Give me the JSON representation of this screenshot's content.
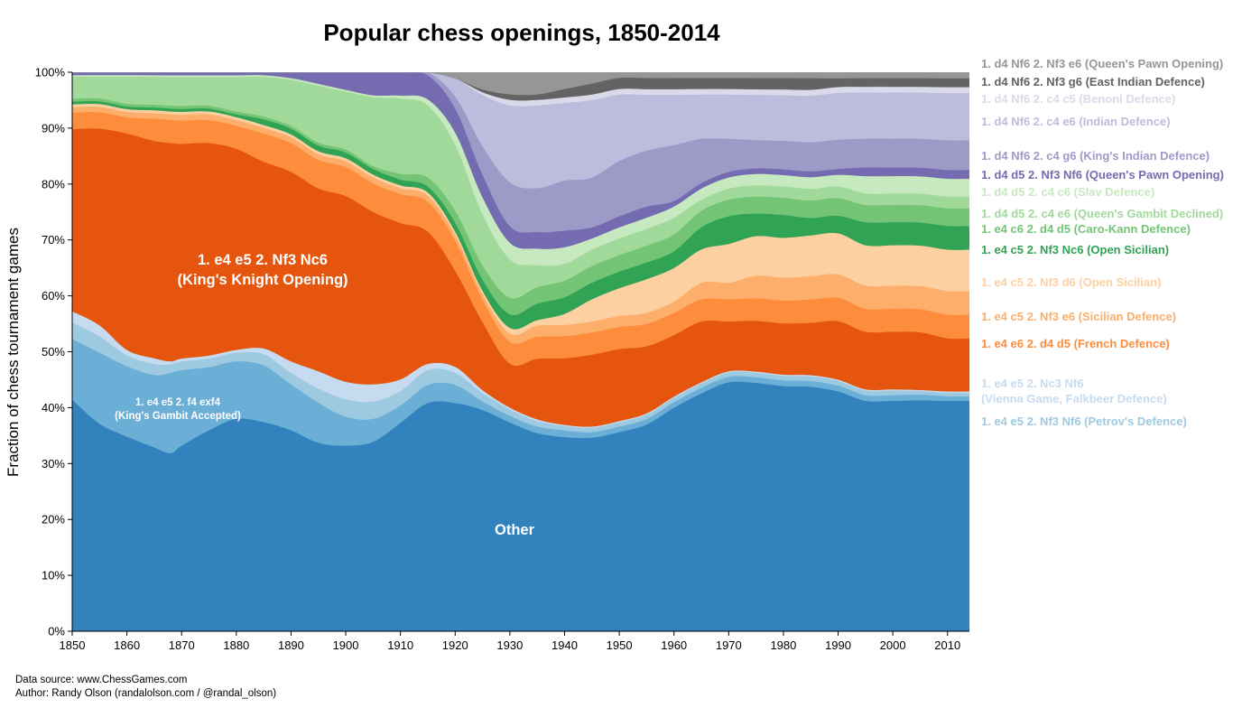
{
  "title": "Popular chess openings, 1850-2014",
  "footer": {
    "source": "Data source: www.ChessGames.com",
    "author": "Author: Randy Olson (randalolson.com / @randal_olson)"
  },
  "chart_data": {
    "type": "area",
    "stacked": true,
    "title": "Popular chess openings, 1850-2014",
    "xlabel": "",
    "ylabel": "Fraction of chess tournament games",
    "xlim": [
      1850,
      2014
    ],
    "ylim": [
      0,
      100
    ],
    "x_ticks": [
      1850,
      1860,
      1870,
      1880,
      1890,
      1900,
      1910,
      1920,
      1930,
      1940,
      1950,
      1960,
      1970,
      1980,
      1990,
      2000,
      2010
    ],
    "y_ticks": [
      0,
      10,
      20,
      30,
      40,
      50,
      60,
      70,
      80,
      90,
      100
    ],
    "y_tick_labels": [
      "0%",
      "10%",
      "20%",
      "30%",
      "40%",
      "50%",
      "60%",
      "70%",
      "80%",
      "90%",
      "100%"
    ],
    "grid": false,
    "legend_placement": "right",
    "x": [
      1850,
      1855,
      1860,
      1865,
      1868,
      1870,
      1875,
      1880,
      1885,
      1890,
      1895,
      1900,
      1905,
      1910,
      1915,
      1920,
      1925,
      1930,
      1935,
      1940,
      1945,
      1950,
      1955,
      1960,
      1965,
      1970,
      1975,
      1980,
      1985,
      1990,
      1995,
      2000,
      2005,
      2010,
      2014
    ],
    "series": [
      {
        "name": "Other",
        "color": "#3182bd",
        "values": [
          42,
          38,
          36,
          33,
          31,
          32,
          35,
          37,
          37,
          35,
          33,
          32,
          33,
          36,
          38,
          38,
          39,
          38,
          36,
          35,
          35,
          36,
          37,
          40,
          43,
          45,
          44,
          43,
          42,
          41,
          40,
          40,
          40,
          39,
          39
        ]
      },
      {
        "name": "1. e4 e5 2. Nf3 Nf6 (Petrov's Defence)",
        "color": "#6baed6",
        "values": [
          11,
          13,
          13,
          13,
          14,
          13,
          11,
          10,
          10,
          8,
          7,
          5,
          4,
          3,
          3,
          3,
          1.5,
          1.2,
          1.2,
          1.2,
          1,
          1,
          1,
          1,
          1,
          1,
          1,
          1,
          1,
          1,
          1,
          1,
          1,
          0.8,
          0.8
        ]
      },
      {
        "name": "1. e4 e5 2. Nc3 Nf6 (Vienna Game, Falkbeer Defence)",
        "color": "#9ecae1",
        "values": [
          3,
          3,
          2,
          2,
          1.5,
          1.5,
          1.5,
          1.5,
          2,
          2,
          2.5,
          3,
          3,
          2.5,
          2.5,
          2,
          1.5,
          1.2,
          1,
          0.8,
          0.8,
          0.8,
          0.8,
          0.8,
          0.8,
          0.8,
          0.8,
          0.8,
          0.8,
          0.8,
          0.8,
          0.8,
          0.6,
          0.6,
          0.6
        ]
      },
      {
        "name": "1. e4 e5 2. f4 exf4 (King's Gambit Accepted)",
        "color": "#c6dbef",
        "values": [
          2,
          2,
          1,
          1,
          0.5,
          0.5,
          0.5,
          0.5,
          1,
          2,
          3,
          3,
          3,
          2,
          1,
          1,
          0.5,
          0.3,
          0.3,
          0.2,
          0.2,
          0.2,
          0.2,
          0.2,
          0.2,
          0.2,
          0.2,
          0.2,
          0.2,
          0.2,
          0.2,
          0.2,
          0.2,
          0.2,
          0.2
        ]
      },
      {
        "name": "1. e4 e5 2. Nf3 Nc6 (King's Knight Opening)",
        "color": "#e6550d",
        "values": [
          33,
          36,
          40,
          39,
          38,
          37,
          37,
          35,
          33,
          33,
          32,
          32,
          30,
          27,
          22,
          16,
          12,
          8,
          11,
          12,
          13,
          13,
          12,
          11,
          11,
          9,
          9,
          9,
          9,
          10,
          10,
          10,
          10,
          9,
          9
        ]
      },
      {
        "name": "1. e4 e6 2. d4 d5 (French Defence)",
        "color": "#fd8d3c",
        "values": [
          3,
          3,
          3,
          4,
          4,
          4,
          4,
          4,
          5,
          5,
          5,
          5,
          5,
          5,
          5,
          5,
          4,
          4,
          4,
          4,
          4,
          4,
          4,
          4,
          4,
          4,
          4,
          4,
          4,
          4,
          4,
          4,
          4,
          4,
          4
        ]
      },
      {
        "name": "1. e4 c5 2. Nf3 e6 (Sicilian Defence)",
        "color": "#fdae6b",
        "values": [
          1,
          1,
          1,
          1,
          1,
          1,
          1,
          1,
          1,
          1,
          1,
          1,
          1,
          1,
          1,
          1,
          1,
          1.5,
          2,
          2,
          2,
          2,
          2,
          2,
          3,
          3,
          4,
          4,
          4,
          4,
          4,
          4,
          4,
          4,
          4
        ]
      },
      {
        "name": "1. e4 c5 2. Nf3 d6 (Open Sicilian)",
        "color": "#fdd0a2",
        "values": [
          0.5,
          0.5,
          0.5,
          0.5,
          0.5,
          0.5,
          0.5,
          0.5,
          0.5,
          0.5,
          0.5,
          0.5,
          0.5,
          0.5,
          0.5,
          0.5,
          0.5,
          1,
          1,
          2,
          4,
          5,
          6,
          6,
          6,
          7,
          7,
          7,
          7,
          7,
          7,
          7,
          7,
          7,
          7
        ]
      },
      {
        "name": "1. e4 c5 2. Nf3 Nc6 (Open Sicilian)",
        "color": "#31a354",
        "values": [
          0.5,
          0.5,
          0.5,
          0.5,
          0.5,
          0.5,
          0.5,
          0.5,
          1,
          1,
          1,
          1,
          1,
          1,
          1,
          1.5,
          2,
          2.5,
          3,
          3,
          3,
          3,
          3,
          3,
          4,
          5,
          4,
          4,
          3,
          3,
          4,
          4,
          4,
          4,
          4
        ]
      },
      {
        "name": "1. e4 c6 2. d4 d5 (Caro-Kann Defence)",
        "color": "#74c476",
        "values": [
          0.5,
          0.5,
          0.5,
          0.5,
          0.5,
          0.5,
          0.5,
          0.5,
          0.5,
          0.5,
          0.5,
          0.5,
          0.5,
          1,
          1.5,
          2,
          2.5,
          3,
          3,
          3,
          3,
          3,
          3,
          3,
          3,
          3,
          3,
          3,
          3,
          3,
          3,
          3,
          3,
          3,
          3
        ]
      },
      {
        "name": "1. d4 d5 2. c4 e6 (Queen's Gambit Declined)",
        "color": "#a1d99b",
        "values": [
          4,
          4,
          5,
          5,
          5,
          5,
          5,
          6,
          7,
          8,
          10,
          10,
          12,
          13,
          12,
          11,
          9,
          7,
          4,
          3,
          3,
          3,
          3,
          3,
          2,
          2,
          2,
          2,
          2,
          2,
          2,
          2,
          2,
          2,
          2
        ]
      },
      {
        "name": "1. d4 d5 2. c4 c6 (Slav Defence)",
        "color": "#c7e9c0",
        "values": [
          0.3,
          0.3,
          0.3,
          0.3,
          0.3,
          0.3,
          0.3,
          0.3,
          0.3,
          0.3,
          0.3,
          0.3,
          0.3,
          0.5,
          1,
          2,
          3,
          3,
          3,
          3,
          2,
          2,
          2,
          2,
          2,
          2,
          2,
          2,
          2,
          2,
          3,
          3,
          3,
          3,
          3
        ]
      },
      {
        "name": "1. d4 d5 2. Nf3 Nf6 (Queen's Pawn Opening)",
        "color": "#756bb1",
        "values": [
          0.5,
          0.5,
          0.5,
          0.5,
          0.5,
          0.5,
          0.5,
          0.5,
          0.5,
          1,
          2,
          3,
          4,
          4,
          4,
          4,
          4,
          3,
          3,
          3,
          2,
          2,
          2,
          1,
          1,
          1,
          1,
          1,
          1,
          1,
          1.5,
          1.5,
          1.5,
          1.5,
          1.5
        ]
      },
      {
        "name": "1. d4 Nf6 2. c4 g6 (King's Indian Defence)",
        "color": "#9e9ac8",
        "values": [
          0,
          0,
          0,
          0,
          0,
          0,
          0,
          0,
          0,
          0,
          0,
          0,
          0,
          0,
          0.5,
          2,
          5,
          8,
          8,
          9,
          9,
          10,
          10,
          10,
          8,
          6,
          5,
          5,
          5,
          5,
          5,
          5,
          5,
          5,
          5
        ]
      },
      {
        "name": "1. d4 Nf6 2. c4 e6 (Indian Defence)",
        "color": "#bcbddc",
        "values": [
          0,
          0,
          0,
          0,
          0,
          0,
          0,
          0,
          0,
          0,
          0,
          0,
          0,
          0,
          0,
          3,
          9,
          14,
          15,
          14,
          14,
          12,
          10,
          9,
          8,
          8,
          8,
          8,
          8,
          8,
          8,
          8,
          8,
          8,
          8
        ]
      },
      {
        "name": "1. d4 Nf6 2. c4 c5 (Benoni Defence)",
        "color": "#dadaeb",
        "values": [
          0,
          0,
          0,
          0,
          0,
          0,
          0,
          0,
          0,
          0,
          0,
          0,
          0,
          0,
          0,
          0,
          0.5,
          1,
          1,
          1,
          1,
          1,
          1,
          1,
          1,
          1,
          1,
          1,
          1,
          1,
          1,
          1,
          1,
          1,
          1
        ]
      },
      {
        "name": "1. d4 Nf6 2. Nf3 g6 (East Indian Defence)",
        "color": "#636363",
        "values": [
          0,
          0,
          0,
          0,
          0,
          0,
          0,
          0,
          0,
          0,
          0,
          0,
          0,
          0,
          0,
          0,
          0.5,
          1,
          1,
          1.5,
          2,
          2,
          2,
          2,
          2,
          2,
          2,
          2,
          2,
          1.5,
          1.5,
          1.5,
          1.5,
          1.5,
          1.5
        ]
      },
      {
        "name": "1. d4 Nf6 2. Nf3 e6 (Queen's Pawn Opening)",
        "color": "#969696",
        "values": [
          0,
          0,
          0,
          0,
          0,
          0,
          0,
          0,
          0,
          0,
          0,
          0,
          0,
          0,
          0,
          1,
          3,
          4,
          4,
          3,
          2,
          1,
          1,
          1,
          1,
          1,
          1,
          1,
          1,
          1,
          1,
          1,
          1,
          1,
          1
        ]
      }
    ],
    "legend": [
      {
        "label": "1. d4 Nf6 2. Nf3 e6 (Queen's Pawn Opening)",
        "color": "#969696",
        "lines": [
          "1. d4 Nf6 2. Nf3 e6 (Queen's Pawn Opening)"
        ]
      },
      {
        "label": "1. d4 Nf6 2. Nf3 g6 (East Indian Defence)",
        "color": "#636363",
        "lines": [
          "1. d4 Nf6 2. Nf3 g6 (East Indian Defence)"
        ]
      },
      {
        "label": "1. d4 Nf6 2. c4 c5 (Benoni Defence)",
        "color": "#dadaeb",
        "lines": [
          "1. d4 Nf6 2. c4 c5 (Benoni Defence)"
        ]
      },
      {
        "label": "1. d4 Nf6 2. c4 e6 (Indian Defence)",
        "color": "#bcbddc",
        "lines": [
          "1. d4 Nf6 2. c4 e6 (Indian Defence)"
        ]
      },
      {
        "label": "1. d4 Nf6 2. c4 g6 (King's Indian Defence)",
        "color": "#9e9ac8",
        "lines": [
          "1. d4 Nf6 2. c4 g6 (King's Indian Defence)"
        ]
      },
      {
        "label": "1. d4 d5 2. Nf3 Nf6 (Queen's Pawn Opening)",
        "color": "#756bb1",
        "lines": [
          "1. d4 d5 2. Nf3 Nf6 (Queen's Pawn Opening)"
        ]
      },
      {
        "label": "1. d4 d5 2. c4 c6 (Slav Defence)",
        "color": "#c7e9c0",
        "lines": [
          "1. d4 d5 2. c4 c6 (Slav Defence)"
        ]
      },
      {
        "label": "1. d4 d5 2. c4 e6 (Queen's Gambit Declined)",
        "color": "#a1d99b",
        "lines": [
          "1. d4 d5 2. c4 e6 (Queen's Gambit Declined)"
        ]
      },
      {
        "label": "1. e4 c6 2. d4 d5 (Caro-Kann Defence)",
        "color": "#74c476",
        "lines": [
          "1. e4 c6 2. d4 d5 (Caro-Kann Defence)"
        ]
      },
      {
        "label": "1. e4 c5 2. Nf3 Nc6 (Open Sicilian)",
        "color": "#31a354",
        "lines": [
          "1. e4 c5 2. Nf3 Nc6 (Open Sicilian)"
        ]
      },
      {
        "label": "1. e4 c5 2. Nf3 d6 (Open Sicilian)",
        "color": "#fdd0a2",
        "lines": [
          "1. e4 c5 2. Nf3 d6 (Open Sicilian)"
        ]
      },
      {
        "label": "1. e4 c5 2. Nf3 e6 (Sicilian Defence)",
        "color": "#fdae6b",
        "lines": [
          "1. e4 c5 2. Nf3 e6 (Sicilian Defence)"
        ]
      },
      {
        "label": "1. e4 e6 2. d4 d5 (French Defence)",
        "color": "#fd8d3c",
        "lines": [
          "1. e4 e6 2. d4 d5 (French Defence)"
        ]
      },
      {
        "label": "1. e4 e5 2. Nc3 Nf6 (Vienna Game, Falkbeer Defence)",
        "color": "#c6dbef",
        "lines": [
          "1. e4 e5 2. Nc3 Nf6",
          "(Vienna Game, Falkbeer Defence)"
        ]
      },
      {
        "label": "1. e4 e5 2. Nf3 Nf6 (Petrov's Defence)",
        "color": "#9ecae1",
        "lines": [
          "1. e4 e5 2. Nf3 Nf6 (Petrov's Defence)"
        ]
      }
    ],
    "annotations": [
      {
        "lines": [
          "1. e4 e5 2. Nf3 Nc6",
          "(King's Knight Opening)"
        ]
      },
      {
        "lines": [
          "1. e4 e5 2. f4 exf4",
          "(King's Gambit Accepted)"
        ]
      },
      {
        "lines": [
          "Other"
        ]
      }
    ]
  }
}
